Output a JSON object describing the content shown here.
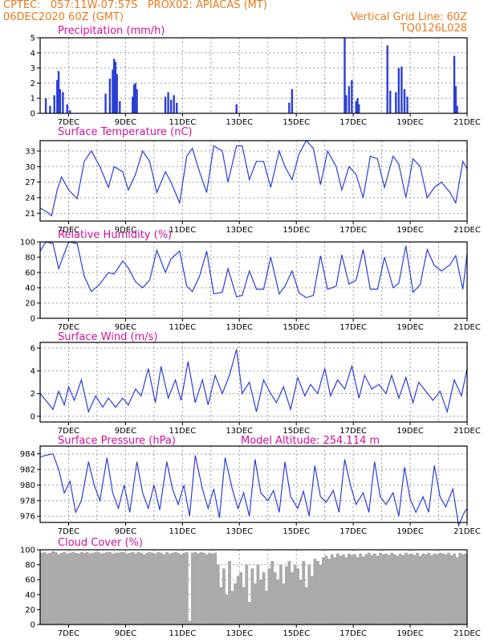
{
  "header": {
    "line1_left": "CPTEC:   057:11W-07:57S   PROX02: APIACAS (MT)",
    "line2_left": "06DEC2020 60Z (GMT)",
    "line2_right": "Vertical Grid Line: 60Z",
    "line3_right": "TQ0126L028"
  },
  "colors": {
    "header": "#e87a1e",
    "title": "#d0109a",
    "line": "#2b3fd6",
    "cloud": "#aaaaaa"
  },
  "x_ticks": [
    "7DEC",
    "9DEC",
    "11DEC",
    "13DEC",
    "15DEC",
    "17DEC",
    "19DEC",
    "21DEC"
  ],
  "chart_data": [
    {
      "id": "precip",
      "type": "bar",
      "title": "Precipitation  (mm/h)",
      "ylim": [
        0,
        5
      ],
      "yticks": [
        0,
        1,
        2,
        3,
        4,
        5
      ],
      "grid": true,
      "x": [
        6.2,
        6.35,
        6.5,
        6.6,
        6.65,
        6.7,
        6.8,
        6.95,
        7.05,
        8.3,
        8.45,
        8.55,
        8.6,
        8.65,
        8.7,
        8.8,
        9.25,
        9.3,
        9.35,
        9.4,
        10.4,
        10.5,
        10.6,
        10.7,
        10.8,
        12.9,
        14.75,
        14.85,
        16.7,
        16.75,
        16.85,
        16.95,
        17.1,
        17.15,
        17.2,
        18.2,
        18.3,
        18.5,
        18.6,
        18.7,
        18.8,
        18.9,
        20.55,
        20.6,
        20.65
      ],
      "values": [
        1.0,
        0.5,
        1.2,
        2.2,
        2.8,
        1.6,
        1.4,
        0.6,
        0.2,
        1.3,
        2.3,
        2.9,
        3.6,
        3.4,
        2.6,
        0.8,
        1.1,
        1.9,
        2.0,
        1.6,
        1.1,
        1.4,
        0.9,
        1.2,
        0.7,
        0.6,
        0.7,
        1.6,
        5.0,
        1.2,
        1.8,
        2.2,
        0.8,
        1.0,
        0.6,
        4.5,
        1.5,
        1.4,
        3.0,
        3.1,
        1.6,
        1.1,
        3.8,
        1.8,
        0.5
      ]
    },
    {
      "id": "temp",
      "type": "line",
      "title": "Surface Temperature  (nC)",
      "ylim": [
        19.5,
        35
      ],
      "yticks": [
        21,
        24,
        27,
        30,
        33
      ],
      "grid": true,
      "x": [
        6.0,
        6.25,
        6.4,
        6.6,
        6.75,
        7.0,
        7.3,
        7.55,
        7.8,
        8.1,
        8.4,
        8.6,
        8.9,
        9.1,
        9.35,
        9.6,
        9.85,
        10.1,
        10.4,
        10.6,
        10.9,
        11.15,
        11.35,
        11.6,
        11.85,
        12.1,
        12.4,
        12.6,
        12.9,
        13.1,
        13.35,
        13.6,
        13.85,
        14.1,
        14.4,
        14.6,
        14.85,
        15.1,
        15.35,
        15.6,
        15.85,
        16.1,
        16.4,
        16.6,
        16.85,
        17.1,
        17.35,
        17.6,
        17.85,
        18.1,
        18.4,
        18.6,
        18.85,
        19.1,
        19.35,
        19.6,
        19.85,
        20.1,
        20.4,
        20.6,
        20.85,
        21.0
      ],
      "values": [
        22.0,
        21.2,
        20.5,
        25.5,
        28.0,
        25.5,
        23.8,
        31.0,
        33.0,
        30.0,
        26.0,
        30.0,
        29.0,
        25.5,
        28.5,
        33.0,
        31.0,
        25.0,
        29.0,
        27.0,
        23.0,
        32.0,
        33.5,
        29.0,
        25.0,
        34.0,
        33.0,
        27.0,
        34.0,
        34.0,
        27.5,
        31.0,
        31.0,
        26.0,
        33.0,
        30.0,
        27.5,
        32.5,
        35.0,
        33.5,
        26.5,
        33.0,
        30.0,
        25.5,
        30.0,
        28.5,
        24.0,
        32.0,
        31.5,
        26.0,
        32.0,
        30.5,
        24.0,
        31.5,
        30.0,
        24.0,
        26.0,
        27.0,
        25.0,
        23.0,
        31.0,
        29.5
      ]
    },
    {
      "id": "rh",
      "type": "line",
      "title": "Relative Humidity  (%)",
      "ylim": [
        0,
        100
      ],
      "yticks": [
        0,
        20,
        40,
        60,
        80,
        100
      ],
      "grid": true,
      "x": [
        6.0,
        6.2,
        6.45,
        6.65,
        6.8,
        7.0,
        7.3,
        7.55,
        7.8,
        8.1,
        8.4,
        8.6,
        8.9,
        9.1,
        9.35,
        9.6,
        9.85,
        10.1,
        10.4,
        10.6,
        10.9,
        11.15,
        11.35,
        11.6,
        11.85,
        12.1,
        12.4,
        12.6,
        12.9,
        13.1,
        13.35,
        13.6,
        13.85,
        14.1,
        14.4,
        14.6,
        14.85,
        15.1,
        15.35,
        15.6,
        15.85,
        16.1,
        16.4,
        16.6,
        16.85,
        17.1,
        17.35,
        17.6,
        17.85,
        18.1,
        18.4,
        18.6,
        18.85,
        19.1,
        19.35,
        19.6,
        19.85,
        20.1,
        20.4,
        20.6,
        20.85,
        21.0
      ],
      "values": [
        88.0,
        100.0,
        98.0,
        65.0,
        80.0,
        100.0,
        98.0,
        55.0,
        35.0,
        45.0,
        60.0,
        58.0,
        75.0,
        66.0,
        48.0,
        40.0,
        50.0,
        89.0,
        60.0,
        78.0,
        88.0,
        42.0,
        35.0,
        55.0,
        88.0,
        32.0,
        34.0,
        65.0,
        28.0,
        30.0,
        62.0,
        38.0,
        38.0,
        80.0,
        32.0,
        42.0,
        62.0,
        33.0,
        27.0,
        30.0,
        82.0,
        38.0,
        42.0,
        83.0,
        45.0,
        50.0,
        90.0,
        38.0,
        38.0,
        80.0,
        40.0,
        46.0,
        95.0,
        34.0,
        44.0,
        90.0,
        69.0,
        62.0,
        70.0,
        82.0,
        38.0,
        85.0
      ]
    },
    {
      "id": "wind",
      "type": "line",
      "title": "Surface Wind  (m/s)",
      "ylim": [
        -0.5,
        6.5
      ],
      "yticks": [
        0,
        2,
        4,
        6
      ],
      "grid": true,
      "x": [
        6.0,
        6.2,
        6.45,
        6.65,
        6.85,
        7.0,
        7.2,
        7.45,
        7.7,
        7.95,
        8.2,
        8.4,
        8.65,
        8.9,
        9.1,
        9.35,
        9.55,
        9.8,
        10.05,
        10.25,
        10.5,
        10.75,
        10.95,
        11.2,
        11.45,
        11.7,
        11.9,
        12.15,
        12.4,
        12.65,
        12.9,
        13.1,
        13.35,
        13.6,
        13.85,
        14.1,
        14.3,
        14.55,
        14.8,
        15.05,
        15.3,
        15.5,
        15.75,
        16.0,
        16.2,
        16.45,
        16.7,
        16.95,
        17.2,
        17.4,
        17.65,
        17.9,
        18.15,
        18.35,
        18.6,
        18.85,
        19.1,
        19.3,
        19.55,
        19.8,
        20.05,
        20.3,
        20.55,
        20.8,
        21.0
      ],
      "values": [
        2.0,
        1.4,
        0.6,
        2.2,
        1.0,
        2.6,
        1.4,
        3.2,
        0.4,
        1.8,
        0.8,
        1.6,
        0.8,
        1.6,
        1.0,
        2.4,
        1.8,
        4.2,
        1.2,
        4.4,
        1.6,
        3.2,
        1.4,
        4.8,
        1.2,
        3.2,
        1.0,
        3.6,
        2.0,
        3.6,
        5.9,
        2.0,
        3.0,
        0.4,
        3.2,
        2.0,
        1.2,
        2.6,
        0.6,
        3.4,
        1.8,
        2.8,
        2.0,
        4.2,
        1.8,
        3.2,
        2.4,
        4.4,
        1.6,
        3.6,
        2.4,
        2.8,
        2.0,
        3.6,
        1.6,
        3.4,
        1.2,
        3.0,
        2.2,
        1.4,
        2.2,
        0.4,
        3.2,
        1.8,
        4.2
      ]
    },
    {
      "id": "pres",
      "type": "line",
      "title": "Surface Pressure  (hPa)",
      "annotation": "Model Altitude: 254.114  m",
      "ylim": [
        975.2,
        985
      ],
      "yticks": [
        976,
        978,
        980,
        982,
        984
      ],
      "grid": true,
      "x": [
        6.0,
        6.2,
        6.45,
        6.65,
        6.85,
        7.05,
        7.25,
        7.45,
        7.7,
        7.9,
        8.1,
        8.35,
        8.55,
        8.75,
        8.95,
        9.15,
        9.4,
        9.6,
        9.8,
        10.0,
        10.2,
        10.45,
        10.65,
        10.85,
        11.05,
        11.25,
        11.45,
        11.7,
        11.9,
        12.1,
        12.3,
        12.5,
        12.75,
        12.95,
        13.15,
        13.35,
        13.55,
        13.75,
        14.0,
        14.2,
        14.4,
        14.6,
        14.8,
        15.05,
        15.25,
        15.45,
        15.65,
        15.85,
        16.05,
        16.3,
        16.5,
        16.7,
        16.9,
        17.1,
        17.35,
        17.55,
        17.75,
        17.95,
        18.15,
        18.4,
        18.6,
        18.8,
        19.0,
        19.2,
        19.45,
        19.65,
        19.85,
        20.05,
        20.25,
        20.5,
        20.7,
        20.9,
        21.0
      ],
      "values": [
        983.6,
        983.8,
        984.0,
        982.0,
        979.0,
        980.5,
        976.5,
        978.0,
        983.0,
        980.0,
        978.0,
        983.5,
        979.0,
        977.0,
        980.0,
        976.5,
        983.0,
        979.0,
        977.0,
        980.0,
        976.8,
        983.0,
        979.5,
        977.5,
        980.0,
        976.0,
        983.8,
        979.5,
        977.0,
        979.5,
        975.8,
        983.5,
        979.5,
        977.0,
        979.0,
        976.0,
        983.3,
        979.0,
        978.0,
        979.3,
        976.5,
        983.0,
        978.5,
        977.0,
        979.2,
        976.0,
        982.5,
        978.5,
        977.8,
        979.3,
        976.5,
        983.3,
        980.0,
        977.5,
        979.0,
        976.5,
        983.0,
        978.5,
        977.5,
        979.0,
        976.0,
        982.3,
        978.2,
        976.5,
        978.5,
        976.5,
        982.5,
        978.5,
        977.2,
        979.5,
        974.8,
        976.5,
        977.0
      ]
    },
    {
      "id": "cloud",
      "type": "bar",
      "title": "Cloud Cover  (%)",
      "ylim": [
        0,
        100
      ],
      "yticks": [
        0,
        20,
        40,
        60,
        80,
        100
      ],
      "grid": true,
      "x": [
        6.0,
        6.1,
        6.2,
        6.3,
        6.4,
        6.5,
        6.6,
        6.7,
        6.8,
        6.9,
        7.0,
        7.1,
        7.2,
        7.3,
        7.4,
        7.5,
        7.6,
        7.7,
        7.8,
        7.9,
        8.0,
        8.1,
        8.2,
        8.3,
        8.4,
        8.5,
        8.6,
        8.7,
        8.8,
        8.9,
        9.0,
        9.1,
        9.2,
        9.3,
        9.4,
        9.5,
        9.6,
        9.7,
        9.8,
        9.9,
        10.0,
        10.1,
        10.2,
        10.3,
        10.4,
        10.5,
        10.6,
        10.7,
        10.8,
        10.9,
        11.0,
        11.1,
        11.2,
        11.3,
        11.4,
        11.5,
        11.6,
        11.7,
        11.8,
        11.9,
        12.0,
        12.1,
        12.2,
        12.3,
        12.4,
        12.5,
        12.6,
        12.7,
        12.8,
        12.9,
        13.0,
        13.1,
        13.2,
        13.3,
        13.4,
        13.5,
        13.6,
        13.7,
        13.8,
        13.9,
        14.0,
        14.1,
        14.2,
        14.3,
        14.4,
        14.5,
        14.6,
        14.7,
        14.8,
        14.9,
        15.0,
        15.1,
        15.2,
        15.3,
        15.4,
        15.5,
        15.6,
        15.7,
        15.8,
        15.9,
        16.0,
        16.1,
        16.2,
        16.3,
        16.4,
        16.5,
        16.6,
        16.7,
        16.8,
        16.9,
        17.0,
        17.1,
        17.2,
        17.3,
        17.4,
        17.5,
        17.6,
        17.7,
        17.8,
        17.9,
        18.0,
        18.1,
        18.2,
        18.3,
        18.4,
        18.5,
        18.6,
        18.7,
        18.8,
        18.9,
        19.0,
        19.1,
        19.2,
        19.3,
        19.4,
        19.5,
        19.6,
        19.7,
        19.8,
        19.9,
        20.0,
        20.1,
        20.2,
        20.3,
        20.4,
        20.5,
        20.6,
        20.7,
        20.8,
        20.9
      ],
      "values": [
        96,
        97,
        95,
        96,
        98,
        97,
        94,
        96,
        97,
        95,
        96,
        97,
        96,
        95,
        97,
        96,
        97,
        95,
        96,
        97,
        97,
        95,
        96,
        97,
        97,
        95,
        96,
        96,
        97,
        97,
        95,
        96,
        97,
        95,
        97,
        96,
        94,
        96,
        97,
        96,
        95,
        97,
        96,
        94,
        97,
        95,
        96,
        97,
        96,
        94,
        96,
        97,
        5,
        96,
        97,
        95,
        97,
        96,
        94,
        96,
        95,
        96,
        80,
        50,
        75,
        40,
        85,
        45,
        55,
        65,
        70,
        50,
        80,
        30,
        75,
        55,
        80,
        60,
        70,
        45,
        75,
        85,
        70,
        60,
        80,
        55,
        78,
        85,
        70,
        80,
        75,
        60,
        85,
        50,
        80,
        65,
        88,
        85,
        80,
        90,
        92,
        88,
        94,
        90,
        95,
        92,
        94,
        90,
        95,
        93,
        94,
        90,
        95,
        91,
        94,
        96,
        93,
        95,
        92,
        96,
        94,
        95,
        93,
        96,
        94,
        92,
        95,
        93,
        96,
        94,
        95,
        93,
        96,
        92,
        95,
        94,
        96,
        93,
        95,
        94,
        96,
        95,
        94,
        96,
        93,
        95,
        90,
        96,
        94,
        95
      ]
    }
  ]
}
